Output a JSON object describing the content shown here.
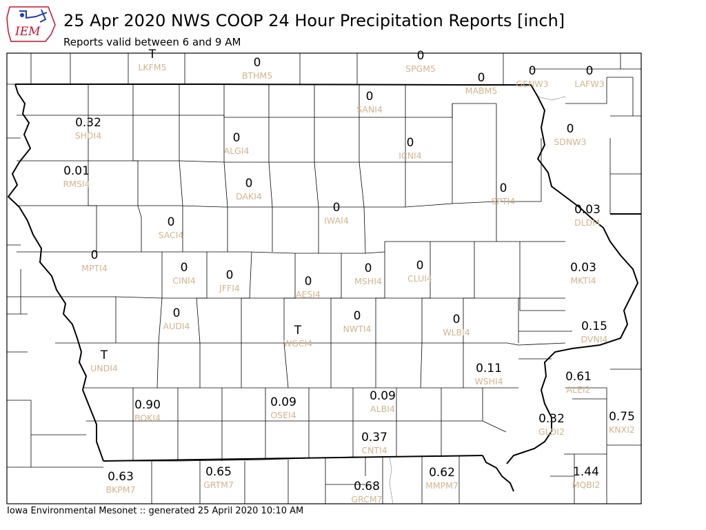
{
  "header": {
    "title": "25 Apr 2020 NWS COOP 24 Hour Precipitation Reports [inch]",
    "subtitle": "Reports valid between 6 and 9 AM"
  },
  "footer": {
    "text": "Iowa Environmental Mesonet :: generated 25 April 2020 10:10 AM"
  },
  "logo": {
    "text": "IEM",
    "icon": "iowa-state-outline-logo",
    "color": "#c8102e"
  },
  "colors": {
    "value_text": "#000000",
    "station_text": "#d2b48c",
    "border": "#000000"
  },
  "stations": [
    {
      "id": "LKFM5",
      "value": "T"
    },
    {
      "id": "BTHM5",
      "value": "0"
    },
    {
      "id": "SPGM5",
      "value": "0"
    },
    {
      "id": "MABM5",
      "value": "0"
    },
    {
      "id": "GENW3",
      "value": "0"
    },
    {
      "id": "LAFW3",
      "value": "0"
    },
    {
      "id": "SANI4",
      "value": "0"
    },
    {
      "id": "SHDI4",
      "value": "0.32"
    },
    {
      "id": "ALGI4",
      "value": "0"
    },
    {
      "id": "ICNI4",
      "value": "0"
    },
    {
      "id": "SDNW3",
      "value": "0"
    },
    {
      "id": "RMSI4",
      "value": "0.01"
    },
    {
      "id": "DAKI4",
      "value": "0"
    },
    {
      "id": "SPTI4",
      "value": "0"
    },
    {
      "id": "IWAI4",
      "value": "0"
    },
    {
      "id": "DLDI4",
      "value": "0.03"
    },
    {
      "id": "SACI4",
      "value": "0"
    },
    {
      "id": "MPTI4",
      "value": "0"
    },
    {
      "id": "CINI4",
      "value": "0"
    },
    {
      "id": "JFFI4",
      "value": "0"
    },
    {
      "id": "CLUI4",
      "value": "0"
    },
    {
      "id": "MSHI4",
      "value": "0"
    },
    {
      "id": "MKTI4",
      "value": "0.03"
    },
    {
      "id": "AESI4",
      "value": "0"
    },
    {
      "id": "AUDI4",
      "value": "0"
    },
    {
      "id": "NWTI4",
      "value": "0"
    },
    {
      "id": "WLBI4",
      "value": "0"
    },
    {
      "id": "WGCI4",
      "value": "T"
    },
    {
      "id": "DVNI4",
      "value": "0.15"
    },
    {
      "id": "UNDI4",
      "value": "T"
    },
    {
      "id": "WSHI4",
      "value": "0.11"
    },
    {
      "id": "ALEI2",
      "value": "0.61"
    },
    {
      "id": "BOKI4",
      "value": "0.90"
    },
    {
      "id": "OSEI4",
      "value": "0.09"
    },
    {
      "id": "ALBI4",
      "value": "0.09"
    },
    {
      "id": "GLDI2",
      "value": "0.32"
    },
    {
      "id": "KNXI2",
      "value": "0.75"
    },
    {
      "id": "CNTI4",
      "value": "0.37"
    },
    {
      "id": "BKPM7",
      "value": "0.63"
    },
    {
      "id": "GRTM7",
      "value": "0.65"
    },
    {
      "id": "MMPM7",
      "value": "0.62"
    },
    {
      "id": "MQBI2",
      "value": "1.44"
    },
    {
      "id": "GRCM7",
      "value": "0.68"
    }
  ]
}
